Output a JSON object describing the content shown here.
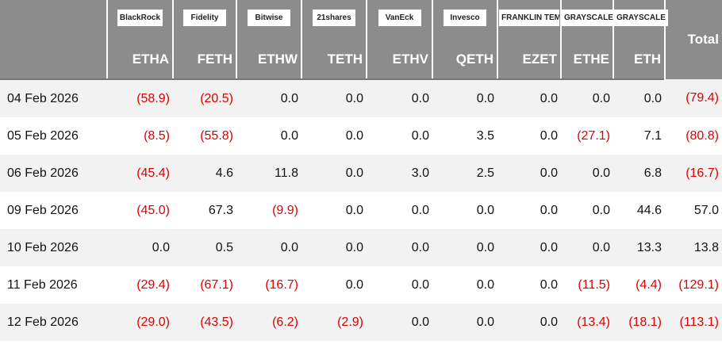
{
  "table": {
    "logos": [
      "BlackRock",
      "Fidelity",
      "Bitwise",
      "21shares",
      "VanEck",
      "Invesco",
      "FRANKLIN TEMPLETON",
      "GRAYSCALE",
      "GRAYSCALE"
    ],
    "total_header": "Total",
    "tickers": [
      "ETHA",
      "FETH",
      "ETHW",
      "TETH",
      "ETHV",
      "QETH",
      "EZET",
      "ETHE",
      "ETH"
    ],
    "rows": [
      [
        "04 Feb 2026",
        "(58.9)",
        "(20.5)",
        "0.0",
        "0.0",
        "0.0",
        "0.0",
        "0.0",
        "0.0",
        "0.0",
        "(79.4)"
      ],
      [
        "05 Feb 2026",
        "(8.5)",
        "(55.8)",
        "0.0",
        "0.0",
        "0.0",
        "3.5",
        "0.0",
        "(27.1)",
        "7.1",
        "(80.8)"
      ],
      [
        "06 Feb 2026",
        "(45.4)",
        "4.6",
        "11.8",
        "0.0",
        "3.0",
        "2.5",
        "0.0",
        "0.0",
        "6.8",
        "(16.7)"
      ],
      [
        "09 Feb 2026",
        "(45.0)",
        "67.3",
        "(9.9)",
        "0.0",
        "0.0",
        "0.0",
        "0.0",
        "0.0",
        "44.6",
        "57.0"
      ],
      [
        "10 Feb 2026",
        "0.0",
        "0.5",
        "0.0",
        "0.0",
        "0.0",
        "0.0",
        "0.0",
        "0.0",
        "13.3",
        "13.8"
      ],
      [
        "11 Feb 2026",
        "(29.4)",
        "(67.1)",
        "(16.7)",
        "0.0",
        "0.0",
        "0.0",
        "0.0",
        "(11.5)",
        "(4.4)",
        "(129.1)"
      ],
      [
        "12 Feb 2026",
        "(29.0)",
        "(43.5)",
        "(6.2)",
        "(2.9)",
        "0.0",
        "0.0",
        "0.0",
        "(13.4)",
        "(18.1)",
        "(113.1)"
      ]
    ]
  }
}
